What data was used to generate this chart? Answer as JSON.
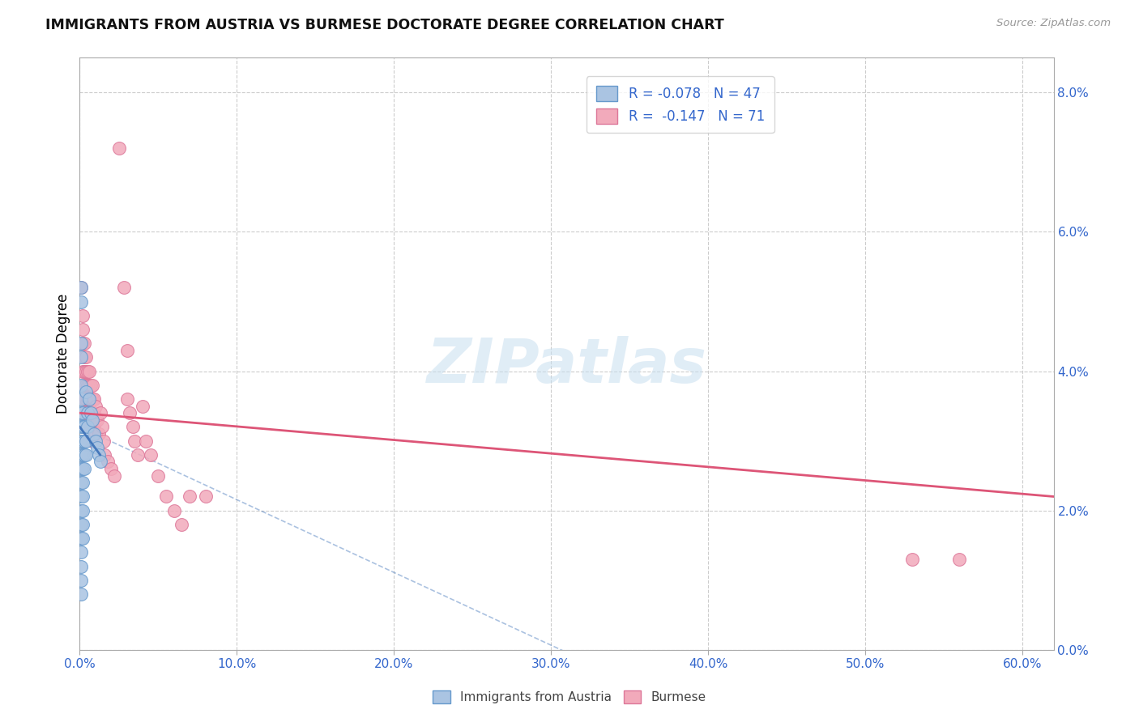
{
  "title": "IMMIGRANTS FROM AUSTRIA VS BURMESE DOCTORATE DEGREE CORRELATION CHART",
  "source": "Source: ZipAtlas.com",
  "ylabel": "Doctorate Degree",
  "watermark": "ZIPatlas",
  "austria_color": "#aac4e2",
  "burmese_color": "#f2aabb",
  "austria_edge_color": "#6699cc",
  "burmese_edge_color": "#dd7799",
  "austria_trend_color": "#4477bb",
  "burmese_trend_color": "#dd5577",
  "legend_text_color": "#3366cc",
  "xlim": [
    0.0,
    0.62
  ],
  "ylim": [
    0.0,
    0.085
  ],
  "x_ticks": [
    0.0,
    0.1,
    0.2,
    0.3,
    0.4,
    0.5,
    0.6
  ],
  "y_ticks": [
    0.0,
    0.02,
    0.04,
    0.06,
    0.08
  ],
  "austria_scatter": [
    [
      0.001,
      0.052
    ],
    [
      0.001,
      0.05
    ],
    [
      0.001,
      0.044
    ],
    [
      0.001,
      0.042
    ],
    [
      0.001,
      0.038
    ],
    [
      0.001,
      0.036
    ],
    [
      0.001,
      0.034
    ],
    [
      0.001,
      0.032
    ],
    [
      0.001,
      0.03
    ],
    [
      0.001,
      0.028
    ],
    [
      0.001,
      0.026
    ],
    [
      0.001,
      0.024
    ],
    [
      0.001,
      0.022
    ],
    [
      0.001,
      0.02
    ],
    [
      0.001,
      0.018
    ],
    [
      0.001,
      0.016
    ],
    [
      0.001,
      0.014
    ],
    [
      0.001,
      0.012
    ],
    [
      0.001,
      0.01
    ],
    [
      0.001,
      0.008
    ],
    [
      0.002,
      0.034
    ],
    [
      0.002,
      0.032
    ],
    [
      0.002,
      0.03
    ],
    [
      0.002,
      0.028
    ],
    [
      0.002,
      0.026
    ],
    [
      0.002,
      0.024
    ],
    [
      0.002,
      0.022
    ],
    [
      0.002,
      0.02
    ],
    [
      0.002,
      0.018
    ],
    [
      0.002,
      0.016
    ],
    [
      0.003,
      0.032
    ],
    [
      0.003,
      0.03
    ],
    [
      0.003,
      0.028
    ],
    [
      0.003,
      0.026
    ],
    [
      0.004,
      0.037
    ],
    [
      0.004,
      0.03
    ],
    [
      0.004,
      0.028
    ],
    [
      0.005,
      0.034
    ],
    [
      0.005,
      0.032
    ],
    [
      0.006,
      0.036
    ],
    [
      0.007,
      0.034
    ],
    [
      0.008,
      0.033
    ],
    [
      0.009,
      0.031
    ],
    [
      0.01,
      0.03
    ],
    [
      0.011,
      0.029
    ],
    [
      0.012,
      0.028
    ],
    [
      0.013,
      0.027
    ]
  ],
  "burmese_scatter": [
    [
      0.001,
      0.052
    ],
    [
      0.002,
      0.048
    ],
    [
      0.002,
      0.046
    ],
    [
      0.002,
      0.044
    ],
    [
      0.002,
      0.04
    ],
    [
      0.003,
      0.044
    ],
    [
      0.003,
      0.042
    ],
    [
      0.003,
      0.04
    ],
    [
      0.003,
      0.038
    ],
    [
      0.003,
      0.036
    ],
    [
      0.003,
      0.034
    ],
    [
      0.004,
      0.042
    ],
    [
      0.004,
      0.04
    ],
    [
      0.004,
      0.038
    ],
    [
      0.004,
      0.036
    ],
    [
      0.004,
      0.034
    ],
    [
      0.005,
      0.04
    ],
    [
      0.005,
      0.038
    ],
    [
      0.005,
      0.036
    ],
    [
      0.005,
      0.034
    ],
    [
      0.006,
      0.04
    ],
    [
      0.006,
      0.038
    ],
    [
      0.006,
      0.036
    ],
    [
      0.006,
      0.034
    ],
    [
      0.006,
      0.032
    ],
    [
      0.007,
      0.038
    ],
    [
      0.007,
      0.036
    ],
    [
      0.007,
      0.034
    ],
    [
      0.007,
      0.032
    ],
    [
      0.008,
      0.038
    ],
    [
      0.008,
      0.036
    ],
    [
      0.008,
      0.034
    ],
    [
      0.008,
      0.032
    ],
    [
      0.008,
      0.03
    ],
    [
      0.009,
      0.036
    ],
    [
      0.009,
      0.034
    ],
    [
      0.009,
      0.032
    ],
    [
      0.009,
      0.03
    ],
    [
      0.01,
      0.035
    ],
    [
      0.01,
      0.033
    ],
    [
      0.01,
      0.031
    ],
    [
      0.011,
      0.033
    ],
    [
      0.012,
      0.031
    ],
    [
      0.013,
      0.034
    ],
    [
      0.014,
      0.032
    ],
    [
      0.015,
      0.03
    ],
    [
      0.016,
      0.028
    ],
    [
      0.018,
      0.027
    ],
    [
      0.02,
      0.026
    ],
    [
      0.022,
      0.025
    ],
    [
      0.025,
      0.072
    ],
    [
      0.028,
      0.052
    ],
    [
      0.03,
      0.043
    ],
    [
      0.03,
      0.036
    ],
    [
      0.032,
      0.034
    ],
    [
      0.034,
      0.032
    ],
    [
      0.035,
      0.03
    ],
    [
      0.037,
      0.028
    ],
    [
      0.04,
      0.035
    ],
    [
      0.042,
      0.03
    ],
    [
      0.045,
      0.028
    ],
    [
      0.05,
      0.025
    ],
    [
      0.055,
      0.022
    ],
    [
      0.06,
      0.02
    ],
    [
      0.065,
      0.018
    ],
    [
      0.07,
      0.022
    ],
    [
      0.08,
      0.022
    ],
    [
      0.53,
      0.013
    ],
    [
      0.56,
      0.013
    ]
  ],
  "burmese_trend": [
    0.0,
    0.62,
    0.034,
    0.022
  ],
  "austria_trend_solid": [
    0.0,
    0.013,
    0.032,
    0.028
  ],
  "austria_trend_dash": [
    0.0,
    0.45,
    0.032,
    -0.015
  ]
}
